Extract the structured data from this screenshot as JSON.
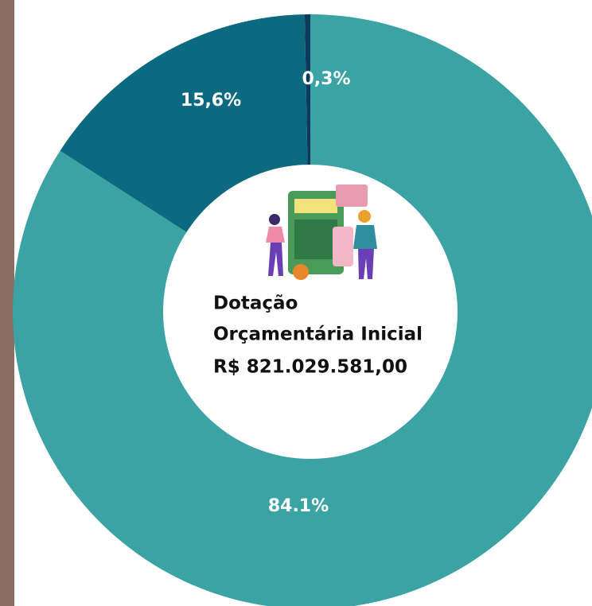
{
  "chart_data": {
    "type": "donut",
    "values": [
      84.1,
      15.6,
      0.3
    ],
    "value_labels": [
      "84.1%",
      "15,6%",
      "0,3%"
    ],
    "colors": [
      "#3ba3a4",
      "#0c6a80",
      "#0d3a5c"
    ],
    "center_text": [
      "Dotação",
      "Orçamentária Inicial",
      "R$ 821.029.581,00"
    ]
  }
}
